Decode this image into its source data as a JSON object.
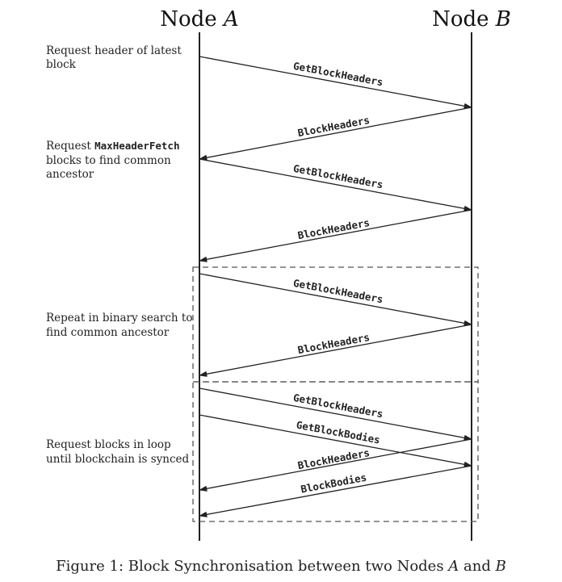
{
  "nodes": {
    "a": {
      "prefix": "Node ",
      "letter": "A"
    },
    "b": {
      "prefix": "Node ",
      "letter": "B"
    }
  },
  "notes": {
    "n1": {
      "line1": "Request header of latest",
      "line2": "block"
    },
    "n2": {
      "line1_pre": "Request ",
      "line1_code": "MaxHeaderFetch",
      "line2": "blocks to find common",
      "line3": "ancestor"
    },
    "n3": {
      "line1": "Repeat in binary search to",
      "line2": "find common ancestor"
    },
    "n4": {
      "line1": "Request blocks in loop",
      "line2": "until blockchain is synced"
    }
  },
  "messages": [
    {
      "label": "GetBlockHeaders",
      "direction": "A→B"
    },
    {
      "label": "BlockHeaders",
      "direction": "B→A"
    },
    {
      "label": "GetBlockHeaders",
      "direction": "A→B"
    },
    {
      "label": "BlockHeaders",
      "direction": "B→A"
    },
    {
      "label": "GetBlockHeaders",
      "direction": "A→B"
    },
    {
      "label": "BlockHeaders",
      "direction": "B→A"
    },
    {
      "label": "GetBlockHeaders",
      "direction": "A→B"
    },
    {
      "label": "GetBlockBodies",
      "direction": "A→B"
    },
    {
      "label": "BlockHeaders",
      "direction": "B→A"
    },
    {
      "label": "BlockBodies",
      "direction": "B→A"
    }
  ],
  "caption": {
    "pre": "Figure 1: Block Synchronisation between two Nodes ",
    "a": "A",
    "mid": " and ",
    "b": "B"
  }
}
